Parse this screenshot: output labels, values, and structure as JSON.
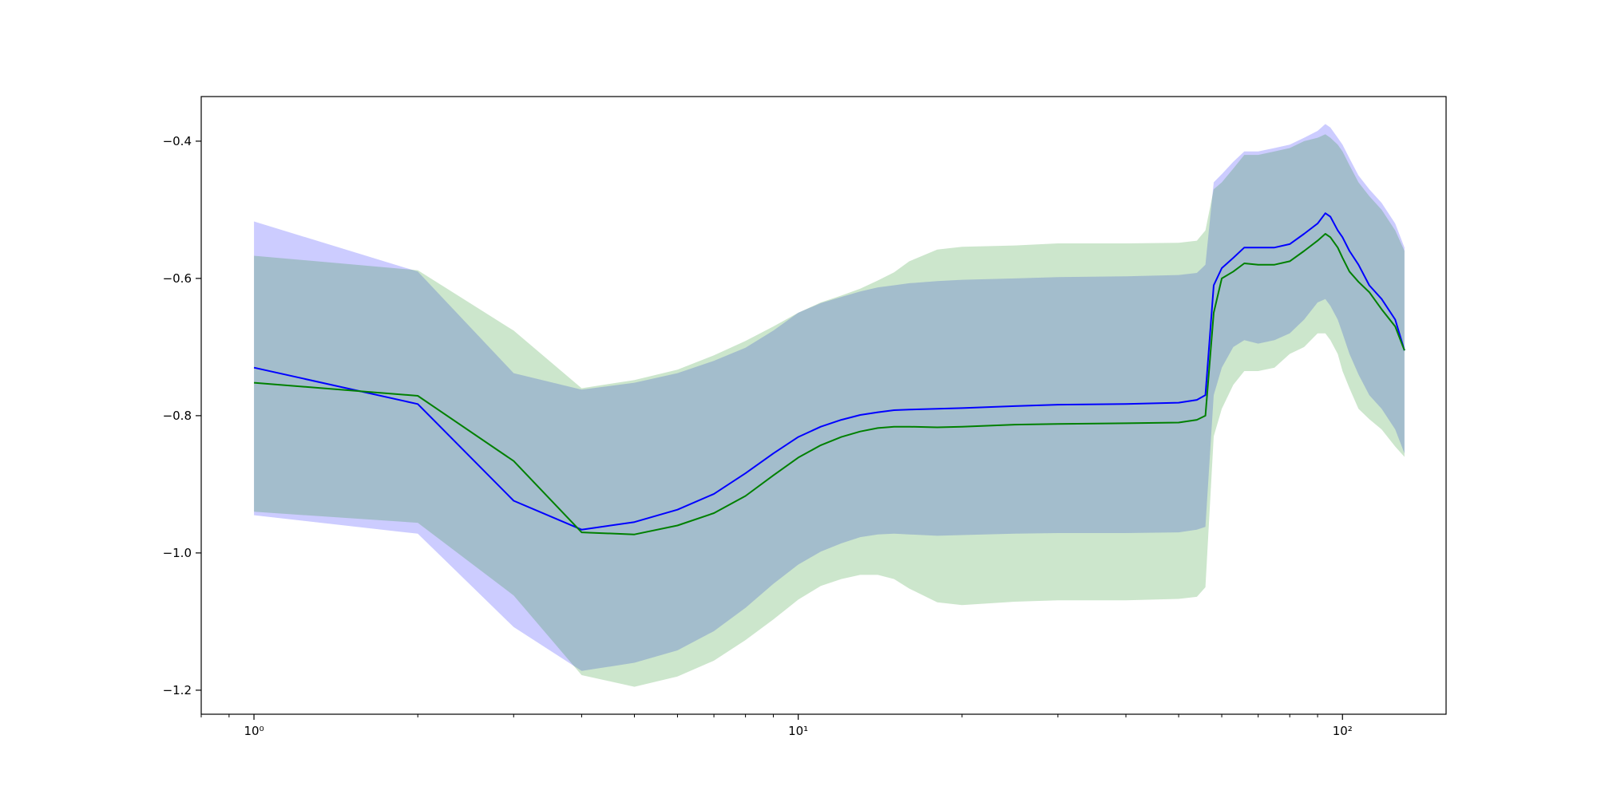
{
  "chart_data": {
    "type": "line",
    "title": "",
    "xlabel": "",
    "ylabel": "",
    "xscale": "log",
    "xlim": [
      0.8,
      155
    ],
    "ylim": [
      -1.235,
      -0.335
    ],
    "grid": false,
    "legend": "none",
    "x_ticks": [
      {
        "value": 1,
        "label": "10⁰"
      },
      {
        "value": 10,
        "label": "10¹"
      },
      {
        "value": 100,
        "label": "10²"
      }
    ],
    "y_ticks": [
      {
        "value": -0.4,
        "label": "−0.4"
      },
      {
        "value": -0.6,
        "label": "−0.6"
      },
      {
        "value": -0.8,
        "label": "−0.8"
      },
      {
        "value": -1.0,
        "label": "−1.0"
      },
      {
        "value": -1.2,
        "label": "−1.2"
      }
    ],
    "series": [
      {
        "color": "#0000ff",
        "band_color": "#0000ff",
        "band_opacity": 0.2,
        "x": [
          1,
          2,
          3,
          4,
          5,
          6,
          7,
          8,
          9,
          10,
          11,
          12,
          13,
          14,
          15,
          16,
          18,
          20,
          25,
          30,
          40,
          50,
          54,
          56,
          58,
          60,
          63,
          66,
          70,
          75,
          80,
          85,
          90,
          93,
          95,
          98,
          100,
          103,
          107,
          112,
          118,
          125,
          130
        ],
        "mean": [
          -0.73,
          -0.783,
          -0.924,
          -0.966,
          -0.955,
          -0.937,
          -0.914,
          -0.884,
          -0.855,
          -0.831,
          -0.816,
          -0.806,
          -0.799,
          -0.795,
          -0.792,
          -0.791,
          -0.79,
          -0.789,
          -0.786,
          -0.784,
          -0.783,
          -0.781,
          -0.777,
          -0.77,
          -0.61,
          -0.585,
          -0.57,
          -0.555,
          -0.555,
          -0.555,
          -0.55,
          -0.535,
          -0.52,
          -0.505,
          -0.51,
          -0.53,
          -0.54,
          -0.56,
          -0.58,
          -0.61,
          -0.63,
          -0.66,
          -0.705
        ],
        "upper": [
          -0.517,
          -0.59,
          -0.738,
          -0.762,
          -0.752,
          -0.738,
          -0.72,
          -0.701,
          -0.676,
          -0.65,
          -0.636,
          -0.627,
          -0.619,
          -0.613,
          -0.61,
          -0.607,
          -0.604,
          -0.602,
          -0.6,
          -0.598,
          -0.597,
          -0.595,
          -0.592,
          -0.58,
          -0.46,
          -0.448,
          -0.43,
          -0.415,
          -0.415,
          -0.41,
          -0.405,
          -0.395,
          -0.385,
          -0.375,
          -0.38,
          -0.395,
          -0.405,
          -0.425,
          -0.45,
          -0.47,
          -0.49,
          -0.52,
          -0.555
        ],
        "lower": [
          -0.945,
          -0.972,
          -1.108,
          -1.172,
          -1.16,
          -1.142,
          -1.114,
          -1.08,
          -1.045,
          -1.017,
          -0.998,
          -0.986,
          -0.977,
          -0.973,
          -0.972,
          -0.973,
          -0.975,
          -0.974,
          -0.972,
          -0.971,
          -0.971,
          -0.97,
          -0.966,
          -0.962,
          -0.77,
          -0.73,
          -0.7,
          -0.69,
          -0.695,
          -0.69,
          -0.68,
          -0.66,
          -0.635,
          -0.63,
          -0.64,
          -0.66,
          -0.68,
          -0.71,
          -0.74,
          -0.77,
          -0.79,
          -0.82,
          -0.855
        ]
      },
      {
        "color": "#008000",
        "band_color": "#008000",
        "band_opacity": 0.2,
        "x": [
          1,
          2,
          3,
          4,
          5,
          6,
          7,
          8,
          9,
          10,
          11,
          12,
          13,
          14,
          15,
          16,
          18,
          20,
          25,
          30,
          40,
          50,
          54,
          56,
          58,
          60,
          63,
          66,
          70,
          75,
          80,
          85,
          90,
          93,
          95,
          98,
          100,
          103,
          107,
          112,
          118,
          125,
          130
        ],
        "mean": [
          -0.752,
          -0.771,
          -0.866,
          -0.97,
          -0.973,
          -0.96,
          -0.942,
          -0.917,
          -0.887,
          -0.861,
          -0.843,
          -0.831,
          -0.823,
          -0.818,
          -0.816,
          -0.816,
          -0.817,
          -0.816,
          -0.813,
          -0.812,
          -0.811,
          -0.81,
          -0.806,
          -0.8,
          -0.65,
          -0.6,
          -0.59,
          -0.578,
          -0.58,
          -0.58,
          -0.575,
          -0.56,
          -0.545,
          -0.535,
          -0.54,
          -0.555,
          -0.57,
          -0.59,
          -0.605,
          -0.62,
          -0.645,
          -0.67,
          -0.705
        ],
        "upper": [
          -0.567,
          -0.588,
          -0.676,
          -0.76,
          -0.748,
          -0.733,
          -0.712,
          -0.691,
          -0.67,
          -0.65,
          -0.635,
          -0.625,
          -0.615,
          -0.603,
          -0.591,
          -0.575,
          -0.558,
          -0.554,
          -0.552,
          -0.549,
          -0.549,
          -0.548,
          -0.545,
          -0.53,
          -0.47,
          -0.46,
          -0.44,
          -0.42,
          -0.42,
          -0.415,
          -0.41,
          -0.4,
          -0.395,
          -0.39,
          -0.395,
          -0.405,
          -0.415,
          -0.435,
          -0.46,
          -0.48,
          -0.5,
          -0.53,
          -0.56
        ],
        "lower": [
          -0.94,
          -0.956,
          -1.062,
          -1.178,
          -1.195,
          -1.18,
          -1.157,
          -1.127,
          -1.097,
          -1.068,
          -1.048,
          -1.038,
          -1.032,
          -1.032,
          -1.038,
          -1.052,
          -1.072,
          -1.076,
          -1.071,
          -1.069,
          -1.069,
          -1.067,
          -1.064,
          -1.05,
          -0.83,
          -0.79,
          -0.755,
          -0.735,
          -0.735,
          -0.73,
          -0.71,
          -0.7,
          -0.68,
          -0.68,
          -0.69,
          -0.71,
          -0.735,
          -0.76,
          -0.79,
          -0.805,
          -0.82,
          -0.845,
          -0.86
        ]
      }
    ]
  }
}
